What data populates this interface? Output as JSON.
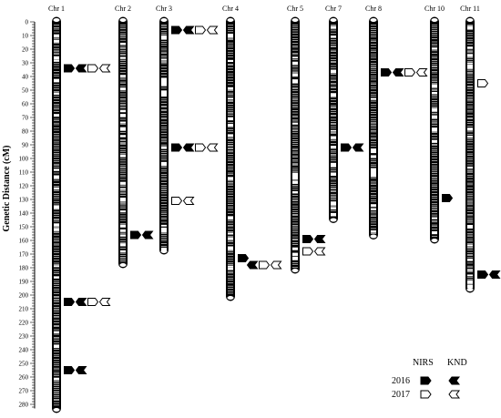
{
  "y_axis": {
    "label": "Genetic Distance (cM)",
    "min": 0,
    "max": 280,
    "step": 10
  },
  "chromosomes": [
    {
      "name": "Chr 1",
      "length": 284
    },
    {
      "name": "Chr 2",
      "length": 178
    },
    {
      "name": "Chr 3",
      "length": 168
    },
    {
      "name": "Chr 4",
      "length": 202
    },
    {
      "name": "Chr 5",
      "length": 182
    },
    {
      "name": "Chr 7",
      "length": 145
    },
    {
      "name": "Chr 8",
      "length": 157
    },
    {
      "name": "Chr 10",
      "length": 160
    },
    {
      "name": "Chr 11",
      "length": 196
    }
  ],
  "qtl_markers": [
    {
      "chr": "Chr 1",
      "position": 34,
      "symbols": [
        "nirs-2016",
        "knd-2016",
        "nirs-2017",
        "knd-2017"
      ]
    },
    {
      "chr": "Chr 1",
      "position": 205,
      "symbols": [
        "nirs-2016",
        "knd-2016",
        "nirs-2017",
        "knd-2017"
      ]
    },
    {
      "chr": "Chr 1",
      "position": 255,
      "symbols": [
        "nirs-2016",
        "knd-2016"
      ]
    },
    {
      "chr": "Chr 2",
      "position": 156,
      "symbols": [
        "nirs-2016",
        "knd-2016"
      ]
    },
    {
      "chr": "Chr 3",
      "position": 6,
      "symbols": [
        "nirs-2016",
        "knd-2016",
        "nirs-2017",
        "knd-2017"
      ]
    },
    {
      "chr": "Chr 3",
      "position": 92,
      "symbols": [
        "nirs-2016",
        "knd-2016",
        "nirs-2017",
        "knd-2017"
      ]
    },
    {
      "chr": "Chr 3",
      "position": 131,
      "symbols": [
        "nirs-2017",
        "knd-2017"
      ]
    },
    {
      "chr": "Chr 4",
      "position": 173,
      "symbols": [
        "nirs-2016"
      ]
    },
    {
      "chr": "Chr 4",
      "position": 178,
      "symbols": [
        "knd-2016",
        "nirs-2017",
        "knd-2017"
      ]
    },
    {
      "chr": "Chr 5",
      "position": 159,
      "symbols": [
        "nirs-2016",
        "knd-2016"
      ]
    },
    {
      "chr": "Chr 5",
      "position": 168,
      "symbols": [
        "nirs-2017",
        "knd-2017"
      ]
    },
    {
      "chr": "Chr 7",
      "position": 92,
      "symbols": [
        "nirs-2016",
        "knd-2016"
      ]
    },
    {
      "chr": "Chr 8",
      "position": 37,
      "symbols": [
        "nirs-2016",
        "knd-2016",
        "nirs-2017",
        "knd-2017"
      ]
    },
    {
      "chr": "Chr 10",
      "position": 129,
      "symbols": [
        "nirs-2016"
      ]
    },
    {
      "chr": "Chr 11",
      "position": 45,
      "symbols": [
        "nirs-2017"
      ]
    },
    {
      "chr": "Chr 11",
      "position": 185,
      "symbols": [
        "nirs-2016",
        "knd-2016"
      ]
    }
  ],
  "legend": {
    "headers": [
      "NIRS",
      "KND"
    ],
    "rows": [
      {
        "year": "2016",
        "nirs": "nirs-2016",
        "knd": "knd-2016"
      },
      {
        "year": "2017",
        "nirs": "nirs-2017",
        "knd": "knd-2017"
      }
    ]
  },
  "colors": {
    "chromosome": "#000000",
    "background": "#ffffff",
    "marker_2016_fill": "#000000",
    "marker_2017_fill": "#ffffff"
  }
}
